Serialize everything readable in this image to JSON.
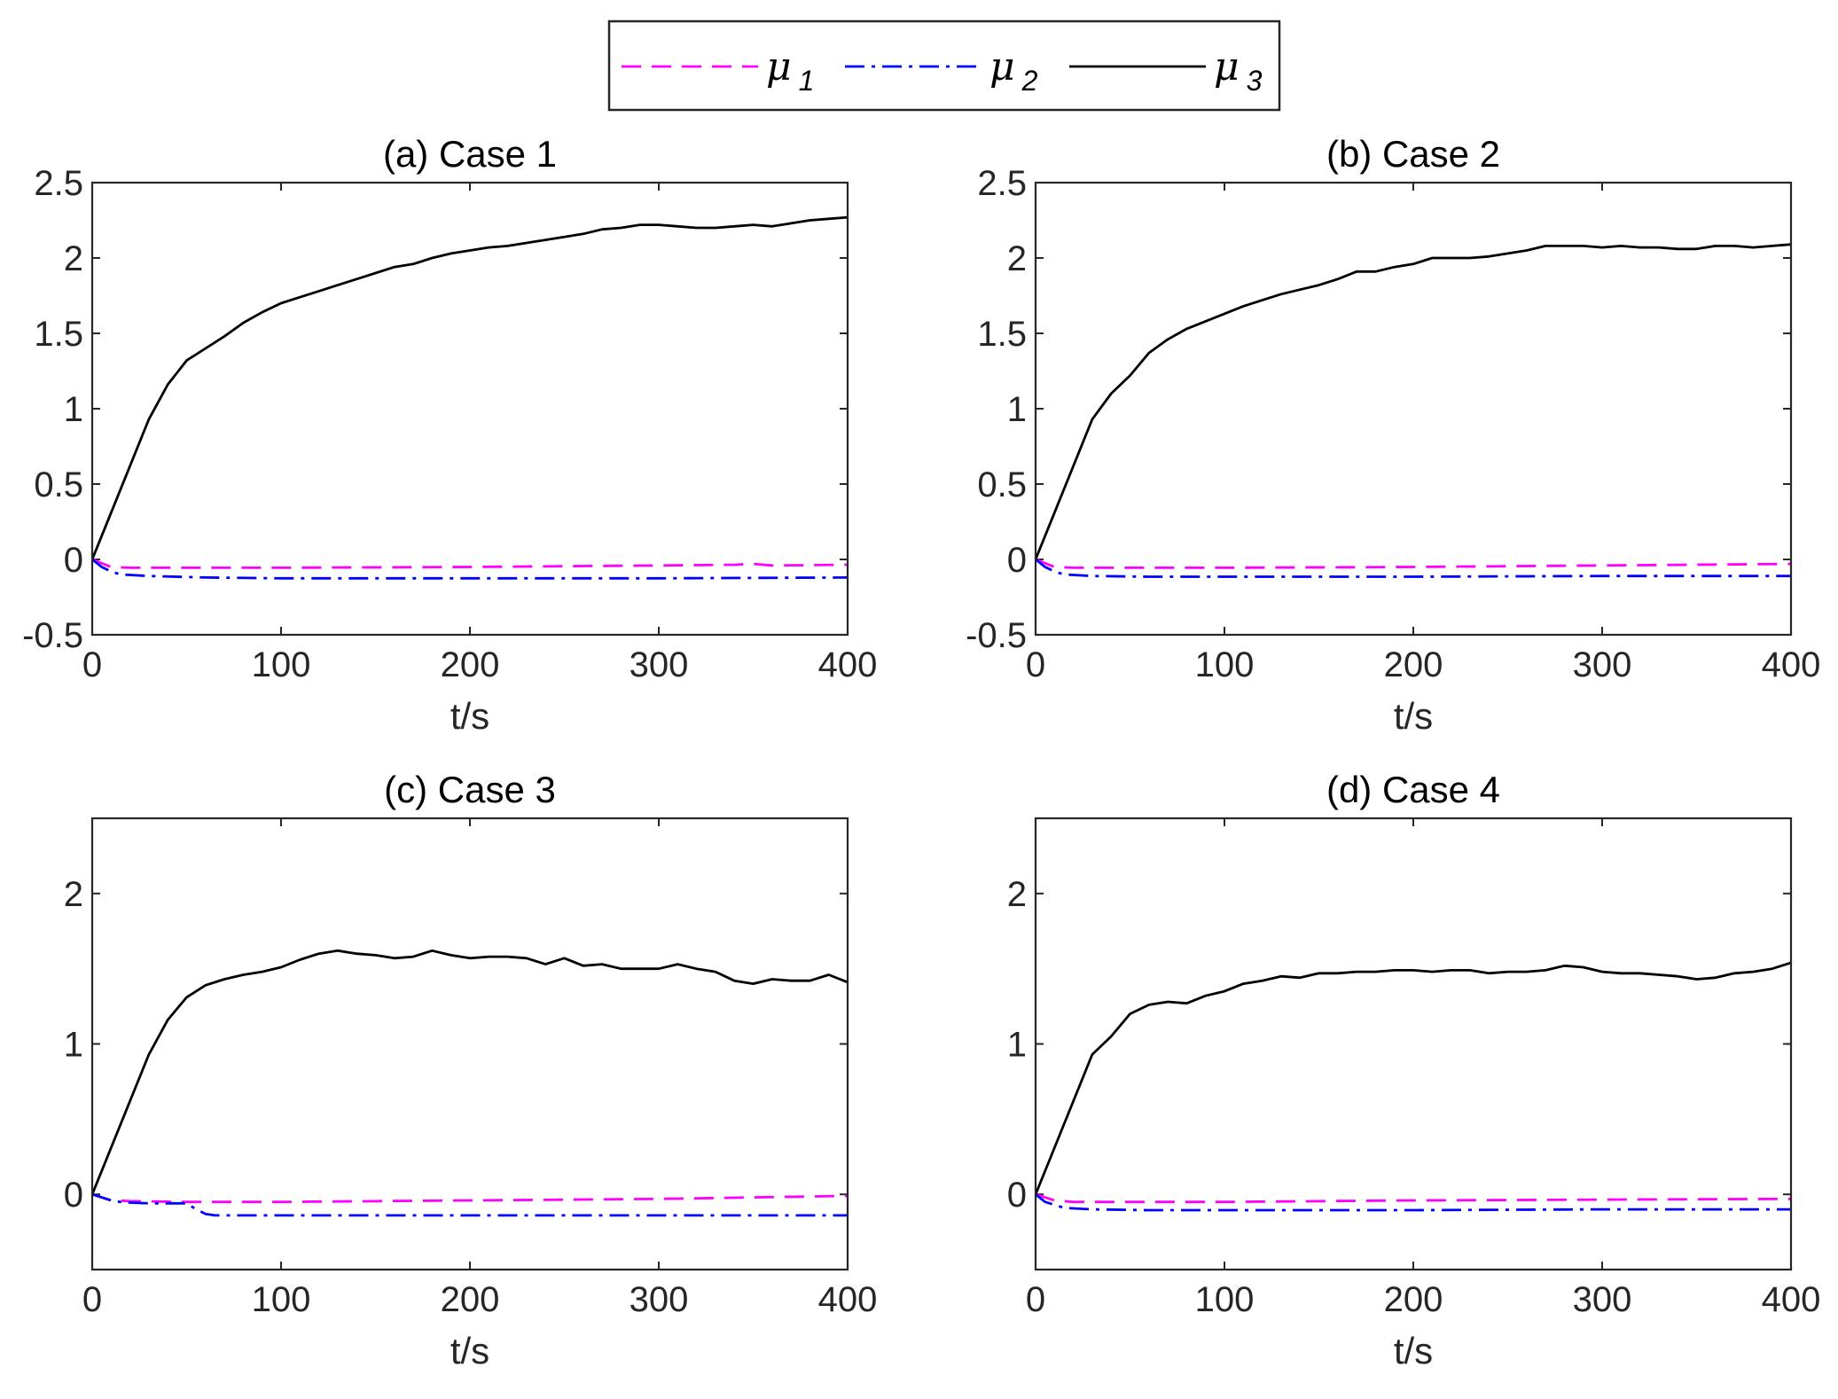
{
  "chart_data": {
    "type": "line",
    "legend": {
      "placement": "top-center",
      "entries": [
        {
          "symbol": "μ",
          "subscript": "1",
          "color": "#FF00FF",
          "style": "dashed"
        },
        {
          "symbol": "μ",
          "subscript": "2",
          "color": "#0000FF",
          "style": "dashdot"
        },
        {
          "symbol": "μ",
          "subscript": "3",
          "color": "#000000",
          "style": "solid"
        }
      ]
    },
    "panels": [
      {
        "title": "(a) Case 1",
        "xlabel": "t/s",
        "xlim": [
          0,
          400
        ],
        "ylim": [
          -0.5,
          2.5
        ],
        "xticks": [
          0,
          100,
          200,
          300,
          400
        ],
        "yticks": [
          -0.5,
          0,
          0.5,
          1,
          1.5,
          2,
          2.5
        ],
        "ytick_labels": [
          "-0.5",
          "0",
          "0.5",
          "1",
          "1.5",
          "2",
          "2.5"
        ],
        "series": [
          {
            "name": "mu1",
            "x": [
              0,
              10,
              20,
              50,
              100,
              200,
              300,
              340,
              350,
              360,
              400
            ],
            "y": [
              0,
              -0.05,
              -0.055,
              -0.055,
              -0.055,
              -0.05,
              -0.04,
              -0.035,
              -0.03,
              -0.04,
              -0.035
            ]
          },
          {
            "name": "mu2",
            "x": [
              0,
              5,
              10,
              15,
              30,
              60,
              100,
              200,
              300,
              400
            ],
            "y": [
              0,
              -0.05,
              -0.08,
              -0.1,
              -0.11,
              -0.12,
              -0.125,
              -0.125,
              -0.125,
              -0.12
            ]
          },
          {
            "name": "mu3",
            "x": [
              0,
              10,
              20,
              30,
              40,
              50,
              60,
              70,
              80,
              90,
              100,
              110,
              120,
              130,
              140,
              150,
              160,
              170,
              180,
              190,
              200,
              210,
              220,
              230,
              240,
              250,
              260,
              270,
              280,
              290,
              300,
              310,
              320,
              330,
              340,
              350,
              360,
              370,
              380,
              390,
              400
            ],
            "y": [
              0,
              0.31,
              0.62,
              0.93,
              1.16,
              1.32,
              1.4,
              1.48,
              1.57,
              1.64,
              1.7,
              1.74,
              1.78,
              1.82,
              1.86,
              1.9,
              1.94,
              1.96,
              2.0,
              2.03,
              2.05,
              2.07,
              2.08,
              2.1,
              2.12,
              2.14,
              2.16,
              2.19,
              2.2,
              2.22,
              2.22,
              2.21,
              2.2,
              2.2,
              2.21,
              2.22,
              2.21,
              2.23,
              2.25,
              2.26,
              2.27
            ]
          }
        ]
      },
      {
        "title": "(b) Case 2",
        "xlabel": "t/s",
        "xlim": [
          0,
          400
        ],
        "ylim": [
          -0.5,
          2.5
        ],
        "xticks": [
          0,
          100,
          200,
          300,
          400
        ],
        "yticks": [
          -0.5,
          0,
          0.5,
          1,
          1.5,
          2,
          2.5
        ],
        "ytick_labels": [
          "-0.5",
          "0",
          "0.5",
          "1",
          "1.5",
          "2",
          "2.5"
        ],
        "series": [
          {
            "name": "mu1",
            "x": [
              0,
              10,
              20,
              50,
              100,
              200,
              300,
              400
            ],
            "y": [
              0,
              -0.05,
              -0.055,
              -0.055,
              -0.055,
              -0.05,
              -0.04,
              -0.03
            ]
          },
          {
            "name": "mu2",
            "x": [
              0,
              5,
              10,
              15,
              30,
              60,
              100,
              200,
              300,
              400
            ],
            "y": [
              0,
              -0.05,
              -0.08,
              -0.1,
              -0.11,
              -0.115,
              -0.115,
              -0.115,
              -0.11,
              -0.11
            ]
          },
          {
            "name": "mu3",
            "x": [
              0,
              10,
              20,
              30,
              40,
              50,
              60,
              70,
              80,
              90,
              100,
              110,
              120,
              130,
              140,
              150,
              160,
              170,
              180,
              190,
              200,
              210,
              220,
              230,
              240,
              250,
              260,
              270,
              280,
              290,
              300,
              310,
              320,
              330,
              340,
              350,
              360,
              370,
              380,
              390,
              400
            ],
            "y": [
              0,
              0.31,
              0.62,
              0.93,
              1.1,
              1.22,
              1.37,
              1.46,
              1.53,
              1.58,
              1.63,
              1.68,
              1.72,
              1.76,
              1.79,
              1.82,
              1.86,
              1.91,
              1.91,
              1.94,
              1.96,
              2.0,
              2.0,
              2.0,
              2.01,
              2.03,
              2.05,
              2.08,
              2.08,
              2.08,
              2.07,
              2.08,
              2.07,
              2.07,
              2.06,
              2.06,
              2.08,
              2.08,
              2.07,
              2.08,
              2.09
            ]
          }
        ]
      },
      {
        "title": "(c) Case 3",
        "xlabel": "t/s",
        "xlim": [
          0,
          400
        ],
        "ylim": [
          -0.5,
          2.5
        ],
        "xticks": [
          0,
          100,
          200,
          300,
          400
        ],
        "yticks": [
          0,
          1,
          2
        ],
        "ytick_labels": [
          "0",
          "1",
          "2"
        ],
        "series": [
          {
            "name": "mu1",
            "x": [
              0,
              10,
              20,
              50,
              100,
              200,
              300,
              400
            ],
            "y": [
              0,
              -0.04,
              -0.045,
              -0.05,
              -0.05,
              -0.04,
              -0.03,
              -0.01
            ]
          },
          {
            "name": "mu2",
            "x": [
              0,
              5,
              10,
              15,
              20,
              30,
              40,
              50,
              55,
              60,
              65,
              100,
              200,
              300,
              400
            ],
            "y": [
              0,
              -0.02,
              -0.04,
              -0.05,
              -0.055,
              -0.06,
              -0.06,
              -0.06,
              -0.1,
              -0.13,
              -0.14,
              -0.14,
              -0.14,
              -0.14,
              -0.14
            ]
          },
          {
            "name": "mu3",
            "x": [
              0,
              10,
              20,
              30,
              40,
              50,
              60,
              70,
              80,
              90,
              100,
              110,
              120,
              130,
              140,
              150,
              160,
              170,
              180,
              190,
              200,
              210,
              220,
              230,
              240,
              250,
              260,
              270,
              280,
              290,
              300,
              310,
              320,
              330,
              340,
              350,
              360,
              370,
              380,
              390,
              400
            ],
            "y": [
              0,
              0.31,
              0.62,
              0.93,
              1.16,
              1.31,
              1.39,
              1.43,
              1.46,
              1.48,
              1.51,
              1.56,
              1.6,
              1.62,
              1.6,
              1.59,
              1.57,
              1.58,
              1.62,
              1.59,
              1.57,
              1.58,
              1.58,
              1.57,
              1.53,
              1.57,
              1.52,
              1.53,
              1.5,
              1.5,
              1.5,
              1.53,
              1.5,
              1.48,
              1.42,
              1.4,
              1.43,
              1.42,
              1.42,
              1.46,
              1.41
            ]
          }
        ]
      },
      {
        "title": "(d) Case 4",
        "xlabel": "t/s",
        "xlim": [
          0,
          400
        ],
        "ylim": [
          -0.5,
          2.5
        ],
        "xticks": [
          0,
          100,
          200,
          300,
          400
        ],
        "yticks": [
          0,
          1,
          2
        ],
        "ytick_labels": [
          "0",
          "1",
          "2"
        ],
        "series": [
          {
            "name": "mu1",
            "x": [
              0,
              10,
              20,
              50,
              100,
              200,
              300,
              400
            ],
            "y": [
              0,
              -0.04,
              -0.05,
              -0.05,
              -0.05,
              -0.04,
              -0.035,
              -0.03
            ]
          },
          {
            "name": "mu2",
            "x": [
              0,
              5,
              10,
              15,
              30,
              60,
              100,
              200,
              300,
              400
            ],
            "y": [
              0,
              -0.05,
              -0.07,
              -0.09,
              -0.1,
              -0.105,
              -0.105,
              -0.105,
              -0.1,
              -0.1
            ]
          },
          {
            "name": "mu3",
            "x": [
              0,
              10,
              20,
              30,
              40,
              50,
              60,
              70,
              80,
              90,
              100,
              110,
              120,
              130,
              140,
              150,
              160,
              170,
              180,
              190,
              200,
              210,
              220,
              230,
              240,
              250,
              260,
              270,
              280,
              290,
              300,
              310,
              320,
              330,
              340,
              350,
              360,
              370,
              380,
              390,
              400
            ],
            "y": [
              0,
              0.31,
              0.62,
              0.93,
              1.05,
              1.2,
              1.26,
              1.28,
              1.27,
              1.32,
              1.35,
              1.4,
              1.42,
              1.45,
              1.44,
              1.47,
              1.47,
              1.48,
              1.48,
              1.49,
              1.49,
              1.48,
              1.49,
              1.49,
              1.47,
              1.48,
              1.48,
              1.49,
              1.52,
              1.51,
              1.48,
              1.47,
              1.47,
              1.46,
              1.45,
              1.43,
              1.44,
              1.47,
              1.48,
              1.5,
              1.54
            ]
          }
        ]
      }
    ]
  }
}
